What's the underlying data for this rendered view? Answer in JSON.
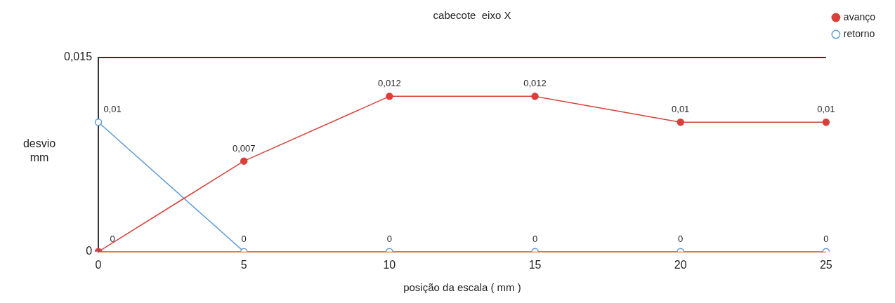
{
  "chart_data": {
    "type": "line",
    "title": "cabecote  eixo X",
    "xlabel": "posição da escala ( mm )",
    "ylabel": "desvio mm",
    "categories": [
      "0",
      "5",
      "10",
      "15",
      "20",
      "25"
    ],
    "series": [
      {
        "name": "avanço",
        "color": "#d9403a",
        "values": [
          0,
          0.007,
          0.012,
          0.012,
          0.01,
          0.01
        ],
        "value_labels": [
          "0",
          "0,007",
          "0,012",
          "0,012",
          "0,01",
          "0,01"
        ]
      },
      {
        "name": "retorno",
        "color": "#5b9bd5",
        "values": [
          0.01,
          0,
          0,
          0,
          0,
          0
        ],
        "value_labels": [
          "0,01",
          "0",
          "0",
          "0",
          "0",
          "0"
        ]
      }
    ],
    "ylim": [
      0,
      0.015
    ],
    "yticks": [
      {
        "value": 0,
        "label": "0"
      },
      {
        "value": 0.015,
        "label": "0,015"
      }
    ],
    "legend": "top right",
    "marker": "circle",
    "line_style": "solid"
  }
}
